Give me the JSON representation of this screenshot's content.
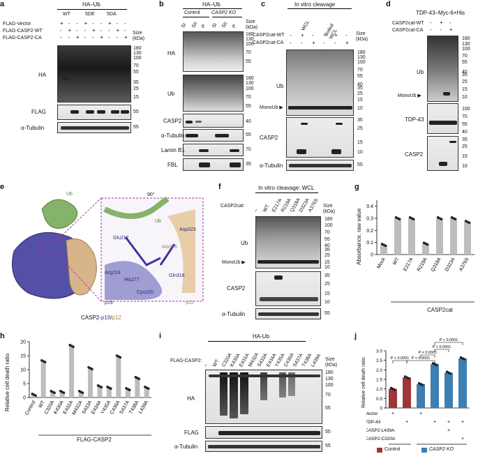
{
  "panel_a": {
    "letter": "a",
    "title": "HA–Ub",
    "groups": [
      "WT",
      "5DE",
      "5DA"
    ],
    "rows": [
      "FLAG-Vector",
      "FLAG-CASP2-WT",
      "FLAG-CASP2-CA"
    ],
    "signs": [
      [
        "+",
        "-",
        "-",
        "+",
        "-",
        "-",
        "+",
        "-",
        "-"
      ],
      [
        "-",
        "+",
        "-",
        "-",
        "+",
        "-",
        "-",
        "+",
        "-"
      ],
      [
        "-",
        "-",
        "+",
        "-",
        "-",
        "+",
        "-",
        "-",
        "+"
      ]
    ],
    "blots": [
      "HA",
      "FLAG",
      "α-Tubulin"
    ],
    "size_label": "Size (kDa)",
    "markers_ha": [
      "180",
      "130",
      "100",
      "70",
      "55",
      "35",
      "25",
      "15"
    ],
    "marker_flag": "55",
    "marker_tub": "55"
  },
  "panel_b": {
    "letter": "b",
    "title": "HA–Ub",
    "group1": "Control",
    "group2": "CASP2 KO",
    "lanes": [
      "SI",
      "SII",
      "P",
      "SI",
      "SII",
      "P"
    ],
    "blots": [
      "HA",
      "Ub",
      "CASP2",
      "α-Tubulin",
      "Lamin B1",
      "FBL"
    ],
    "size_label": "Size (kDa)",
    "markers_ha": [
      "180",
      "130",
      "100",
      "70",
      "55"
    ],
    "markers_ub": [
      "180",
      "130",
      "100",
      "70",
      "55"
    ],
    "marker_casp2": "40",
    "marker_tub": "55",
    "marker_lamin": "70",
    "marker_fbl": "35"
  },
  "panel_c": {
    "letter": "c",
    "title": "In vitro cleavage",
    "groups": [
      "WCL",
      "Boiled WCL"
    ],
    "rows": [
      "CASP2cat-WT",
      "CASP2cat-CA"
    ],
    "signs": [
      [
        "-",
        "+",
        "-",
        "-",
        "+",
        "-"
      ],
      [
        "-",
        "-",
        "+",
        "-",
        "-",
        "+"
      ]
    ],
    "blots": [
      "Ub",
      "MonoUb ▶",
      "CASP2",
      "α-Tubulin"
    ],
    "size_label": "Size (kDa)",
    "markers_ub": [
      "180",
      "130",
      "100",
      "70",
      "55",
      "40",
      "35",
      "25",
      "15",
      "10"
    ],
    "markers_casp2": [
      "35",
      "25",
      "15",
      "10"
    ],
    "marker_tub": "55"
  },
  "panel_d": {
    "letter": "d",
    "title": "TDP-43–Myc-6×His",
    "rows": [
      "CASP2cat-WT",
      "CASP2cat-CA"
    ],
    "signs": [
      [
        "-",
        "+",
        "-"
      ],
      [
        "-",
        "-",
        "+"
      ]
    ],
    "blots": [
      "Ub",
      "MonoUb ▶",
      "TDP-43",
      "CASP2"
    ],
    "markers_ub": [
      "180",
      "130",
      "100",
      "70",
      "55",
      "40",
      "35",
      "25",
      "15",
      "10"
    ],
    "markers_tdp": [
      "100",
      "70",
      "55",
      "40"
    ],
    "markers_casp2": [
      "35",
      "25",
      "15",
      "10"
    ]
  },
  "panel_e": {
    "letter": "e",
    "rotation": "90°",
    "labels": [
      "Ub",
      "Ub",
      "Glu217",
      "Asp323",
      "Ala376",
      "Arg219",
      "His277",
      "Gln318",
      "Cys320",
      "p19",
      "p12"
    ],
    "caption_main": "CASP2-",
    "caption_p19": "p19",
    "caption_sep": "/",
    "caption_p12": "p12"
  },
  "panel_f": {
    "letter": "f",
    "title": "In vitro cleavage: WCL",
    "row_label": "CASP2cat:",
    "lanes": [
      "–",
      "WT",
      "E217A",
      "R219A",
      "Q318A",
      "D323A",
      "A376S"
    ],
    "blots": [
      "Ub",
      "MonoUb ▶",
      "CASP2",
      "α-Tubulin"
    ],
    "size_label": "Size (kDa)",
    "markers_ub": [
      "180",
      "100",
      "70",
      "55",
      "40",
      "35",
      "25",
      "15",
      "10"
    ],
    "markers_casp2": [
      "35",
      "25",
      "15",
      "10"
    ],
    "marker_tub": "55"
  },
  "panel_g": {
    "letter": "g",
    "ylabel": "Absorbance, raw value",
    "xgroup": "CASP2cat",
    "colors": {
      "bar": "#bdbdbd",
      "dot": "#222222"
    }
  },
  "panel_h": {
    "letter": "h",
    "ylabel": "Relative cell death ratio",
    "xgroup": "FLAG-CASP2"
  },
  "panel_i": {
    "letter": "i",
    "title": "HA-Ub",
    "row_label": "FLAG-CASP2:",
    "lanes": [
      "–",
      "WT",
      "C320A",
      "K430A",
      "E431A",
      "M432A",
      "S433A",
      "E434A",
      "Y435A",
      "C436A",
      "S437A",
      "T438A",
      "L439A"
    ],
    "blots": [
      "HA",
      "FLAG",
      "α-Tubulin"
    ],
    "size_label": "Size (kDa)",
    "markers_ha": [
      "180",
      "130",
      "100",
      "70",
      "55"
    ],
    "marker_flag": "55",
    "marker_tub": "55"
  },
  "panel_j": {
    "letter": "j",
    "ylabel": "Relative cell death ratio",
    "row_labels": [
      "Vector",
      "TDP-43",
      "CASP2-L439A",
      "CASP2-C320A"
    ],
    "signs": [
      [
        "+",
        "",
        "+",
        ""
      ],
      [
        "",
        "+",
        "",
        "+",
        "+",
        "+"
      ],
      [
        "",
        "",
        "",
        "",
        "+",
        ""
      ],
      [
        "",
        "",
        "",
        "",
        "",
        "+"
      ]
    ],
    "pvalues": [
      "P < 0.0001",
      "P < 0.0001",
      "P = 0.0001",
      "P < 0.0001",
      "P < 0.0001"
    ],
    "legend": [
      {
        "label": "Control",
        "color": "#a0343b"
      },
      {
        "label": "CASP2 KO",
        "color": "#3b7fb3"
      }
    ]
  },
  "chart_data": [
    {
      "type": "bar",
      "categories": [
        "Mock",
        "WT",
        "E217A",
        "R219A",
        "Q318A",
        "D323A",
        "A376S"
      ],
      "values": [
        0.08,
        0.3,
        0.3,
        0.09,
        0.3,
        0.3,
        0.27
      ],
      "ylabel": "Absorbance, raw value",
      "xlabel": "CASP2cat",
      "ylim": [
        0,
        0.45
      ],
      "yticks": [
        "0",
        "0.1",
        "0.2",
        "0.3",
        "0.4"
      ]
    },
    {
      "type": "bar",
      "categories": [
        "Control",
        "WT",
        "C320A",
        "K430A",
        "E431A",
        "M432A",
        "S433A",
        "E434A",
        "Y435A",
        "C436A",
        "S437A",
        "T438A",
        "L439A"
      ],
      "values": [
        1,
        13,
        2,
        2,
        18.5,
        2,
        10.5,
        4,
        3.5,
        14.7,
        3,
        7,
        3.5
      ],
      "ylabel": "Relative cell death ratio",
      "xlabel": "FLAG-CASP2",
      "ylim": [
        0,
        20
      ],
      "yticks": [
        "0",
        "5",
        "10",
        "15",
        "20"
      ]
    },
    {
      "type": "bar",
      "categories": [
        "1",
        "2",
        "3",
        "4",
        "5",
        "6"
      ],
      "values": [
        1.0,
        1.6,
        1.25,
        2.3,
        1.85,
        2.6
      ],
      "ylabel": "Relative cell death ratio",
      "ylim": [
        0,
        3
      ],
      "yticks": [
        "0",
        "0.5",
        "1.0",
        "1.5",
        "2.0",
        "2.5",
        "3.0"
      ],
      "series_colors": [
        "#a0343b",
        "#a0343b",
        "#3b7fb3",
        "#3b7fb3",
        "#3b7fb3",
        "#3b7fb3"
      ]
    }
  ]
}
